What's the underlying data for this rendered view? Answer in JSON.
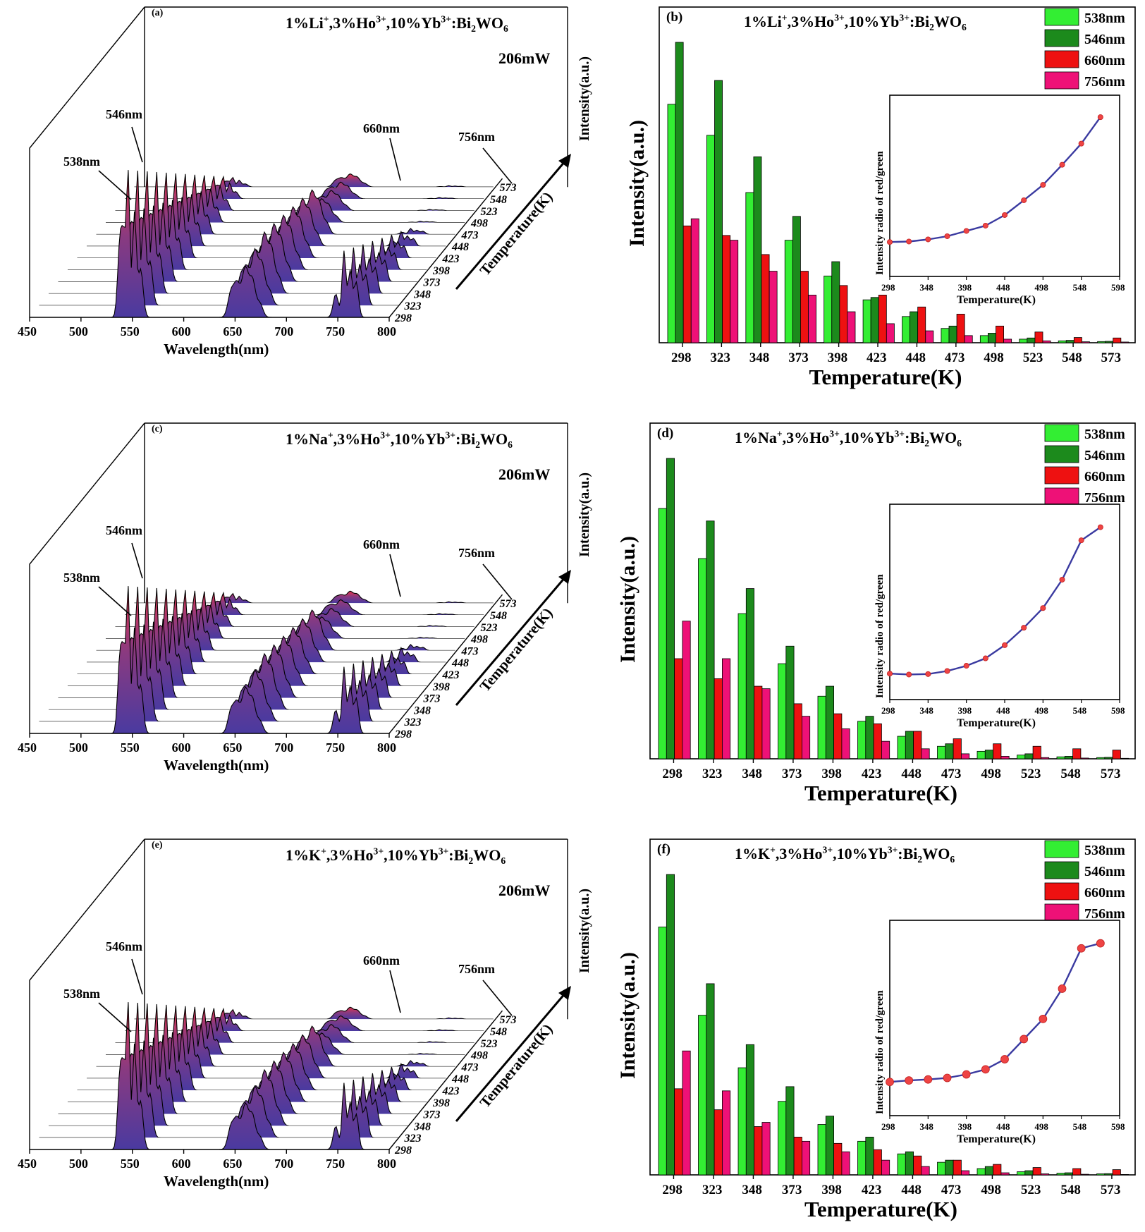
{
  "panels": [
    {
      "waterfall": {
        "letter": "(a)",
        "title_plain": "1%Li",
        "title_full": "1%Li+,3%Ho3+,10%Yb3+:Bi2WO6",
        "power": "206mW",
        "y_axis_label": "Intensity(a.u.)",
        "x_axis_label": "Wavelength(nm)",
        "z_axis_label": "Temperature(K)",
        "x_ticks": [
          "450",
          "500",
          "550",
          "600",
          "650",
          "700",
          "750",
          "800"
        ],
        "z_ticks": [
          "298",
          "323",
          "348",
          "373",
          "398",
          "423",
          "448",
          "473",
          "498",
          "523",
          "548",
          "573"
        ],
        "peak_labels": [
          "538nm",
          "546nm",
          "660nm",
          "756nm"
        ]
      },
      "bars": {
        "letter": "(b)",
        "title_full": "1%Li+,3%Ho3+,10%Yb3+:Bi2WO6",
        "y_axis_label": "Intensity(a.u.)",
        "x_axis_label": "Temperature(K)",
        "inset_y_label": "Intensity radio of red/green",
        "inset_x_label": "Temperature(K)",
        "inset_ticks": [
          "298",
          "348",
          "398",
          "448",
          "498",
          "548",
          "598"
        ]
      }
    },
    {
      "waterfall": {
        "letter": "(c)",
        "title_full": "1%Na+,3%Ho3+,10%Yb3+:Bi2WO6",
        "power": "206mW",
        "y_axis_label": "Intensity(a.u.)",
        "x_axis_label": "Wavelength(nm)",
        "z_axis_label": "Temperature(K)",
        "x_ticks": [
          "450",
          "500",
          "550",
          "600",
          "650",
          "700",
          "750",
          "800"
        ],
        "z_ticks": [
          "298",
          "323",
          "348",
          "373",
          "398",
          "423",
          "448",
          "473",
          "498",
          "523",
          "548",
          "573"
        ],
        "peak_labels": [
          "538nm",
          "546nm",
          "660nm",
          "756nm"
        ]
      },
      "bars": {
        "letter": "(d)",
        "title_full": "1%Na+,3%Ho3+,10%Yb3+:Bi2WO6",
        "y_axis_label": "Intensity(a.u.)",
        "x_axis_label": "Temperature(K)",
        "inset_y_label": "Intensity radio of red/green",
        "inset_x_label": "Temperature(K)",
        "inset_ticks": [
          "298",
          "348",
          "398",
          "448",
          "498",
          "548",
          "598"
        ]
      }
    },
    {
      "waterfall": {
        "letter": "(e)",
        "title_full": "1%K+,3%Ho3+,10%Yb3+:Bi2WO6",
        "power": "206mW",
        "y_axis_label": "Intensity(a.u.)",
        "x_axis_label": "Wavelength(nm)",
        "z_axis_label": "Temperature(K)",
        "x_ticks": [
          "450",
          "500",
          "550",
          "600",
          "650",
          "700",
          "750",
          "800"
        ],
        "z_ticks": [
          "298",
          "323",
          "348",
          "373",
          "398",
          "423",
          "448",
          "473",
          "498",
          "523",
          "548",
          "573"
        ],
        "peak_labels": [
          "538nm",
          "546nm",
          "660nm",
          "756nm"
        ]
      },
      "bars": {
        "letter": "(f)",
        "title_full": "1%K+,3%Ho3+,10%Yb3+:Bi2WO6",
        "y_axis_label": "Intensity(a.u.)",
        "x_axis_label": "Temperature(K)",
        "inset_y_label": "Intensity radio of red/green",
        "inset_x_label": "Temperature(K)",
        "inset_ticks": [
          "298",
          "348",
          "398",
          "448",
          "498",
          "548",
          "598"
        ]
      }
    }
  ],
  "colors": {
    "c538": "#33ee33",
    "c546": "#1c8a1c",
    "c660": "#ee1111",
    "c756": "#ee1177",
    "curve": "#3a3aa0",
    "dot": "#ee4444",
    "spec_low": "#4a3aa0",
    "spec_high": "#e8344a"
  },
  "chart_data": [
    {
      "type": "bar",
      "title": "1%Li+,3%Ho3+,10%Yb3+:Bi2WO6",
      "xlabel": "Temperature(K)",
      "ylabel": "Intensity(a.u.)",
      "categories": [
        "298",
        "323",
        "348",
        "373",
        "398",
        "423",
        "448",
        "473",
        "498",
        "523",
        "548",
        "573"
      ],
      "legend_position": "top-right",
      "series": [
        {
          "name": "538nm",
          "values": [
            100,
            87,
            63,
            43,
            28,
            18,
            11,
            6,
            3,
            1.5,
            0.8,
            0.5
          ]
        },
        {
          "name": "546nm",
          "values": [
            126,
            110,
            78,
            53,
            34,
            19,
            13,
            7,
            4,
            2,
            1,
            0.6
          ]
        },
        {
          "name": "660nm",
          "values": [
            49,
            45,
            37,
            30,
            24,
            20,
            15,
            12,
            7,
            4.5,
            2.2,
            2
          ]
        },
        {
          "name": "756nm",
          "values": [
            52,
            43,
            30,
            20,
            13,
            8,
            5,
            3,
            1.5,
            0.8,
            0.4,
            0.3
          ]
        }
      ],
      "inset": {
        "type": "line",
        "xlabel": "Temperature(K)",
        "ylabel": "Intensity radio of red/green",
        "xlim": [
          298,
          598
        ],
        "x": [
          298,
          323,
          348,
          373,
          398,
          423,
          448,
          473,
          498,
          523,
          548,
          573
        ],
        "y": [
          0.49,
          0.5,
          0.54,
          0.6,
          0.7,
          0.8,
          1.0,
          1.28,
          1.57,
          1.95,
          2.35,
          2.85
        ]
      }
    },
    {
      "type": "bar",
      "title": "1%Na+,3%Ho3+,10%Yb3+:Bi2WO6",
      "xlabel": "Temperature(K)",
      "ylabel": "Intensity(a.u.)",
      "categories": [
        "298",
        "323",
        "348",
        "373",
        "398",
        "423",
        "448",
        "473",
        "498",
        "523",
        "548",
        "573"
      ],
      "legend_position": "top-right",
      "series": [
        {
          "name": "538nm",
          "values": [
            100,
            80,
            58,
            38,
            25,
            15,
            9,
            5,
            3,
            1.5,
            0.8,
            0.5
          ]
        },
        {
          "name": "546nm",
          "values": [
            120,
            95,
            68,
            45,
            29,
            17,
            11,
            6,
            3.5,
            2,
            1,
            0.6
          ]
        },
        {
          "name": "660nm",
          "values": [
            40,
            32,
            29,
            22,
            18,
            14,
            11,
            8,
            6,
            5,
            4,
            3.5
          ]
        },
        {
          "name": "756nm",
          "values": [
            55,
            40,
            28,
            17,
            12,
            7,
            4,
            2,
            1,
            0.5,
            0.3,
            0.2
          ]
        }
      ],
      "inset": {
        "type": "line",
        "xlabel": "Temperature(K)",
        "ylabel": "Intensity radio of red/green",
        "xlim": [
          298,
          598
        ],
        "x": [
          298,
          323,
          348,
          373,
          398,
          423,
          448,
          473,
          498,
          523,
          548,
          573
        ],
        "y": [
          0.4,
          0.38,
          0.39,
          0.46,
          0.58,
          0.75,
          1.05,
          1.45,
          1.9,
          2.55,
          3.45,
          3.75
        ]
      }
    },
    {
      "type": "bar",
      "title": "1%K+,3%Ho3+,10%Yb3+:Bi2WO6",
      "xlabel": "Temperature(K)",
      "ylabel": "Intensity(a.u.)",
      "categories": [
        "298",
        "323",
        "348",
        "373",
        "398",
        "423",
        "448",
        "473",
        "498",
        "523",
        "548",
        "573"
      ],
      "legend_position": "top-right",
      "series": [
        {
          "name": "538nm",
          "values": [
            118,
            76,
            51,
            35,
            24,
            16,
            10,
            6,
            3,
            1.5,
            0.8,
            0.5
          ]
        },
        {
          "name": "546nm",
          "values": [
            143,
            91,
            62,
            42,
            28,
            18,
            11,
            7,
            4,
            2,
            1,
            0.6
          ]
        },
        {
          "name": "660nm",
          "values": [
            41,
            31,
            23,
            18,
            15,
            12,
            9,
            7,
            5,
            3.5,
            3,
            2.5
          ]
        },
        {
          "name": "756nm",
          "values": [
            59,
            40,
            25,
            16,
            11,
            7,
            4,
            2,
            1,
            0.5,
            0.3,
            0.2
          ]
        }
      ],
      "inset": {
        "type": "line",
        "xlabel": "Temperature(K)",
        "ylabel": "Intensity radio of red/green",
        "xlim": [
          298,
          598
        ],
        "x": [
          298,
          323,
          348,
          373,
          398,
          423,
          448,
          473,
          498,
          523,
          548,
          573
        ],
        "y": [
          0.5,
          0.53,
          0.55,
          0.58,
          0.65,
          0.75,
          0.95,
          1.35,
          1.75,
          2.35,
          3.15,
          3.25
        ]
      }
    }
  ]
}
